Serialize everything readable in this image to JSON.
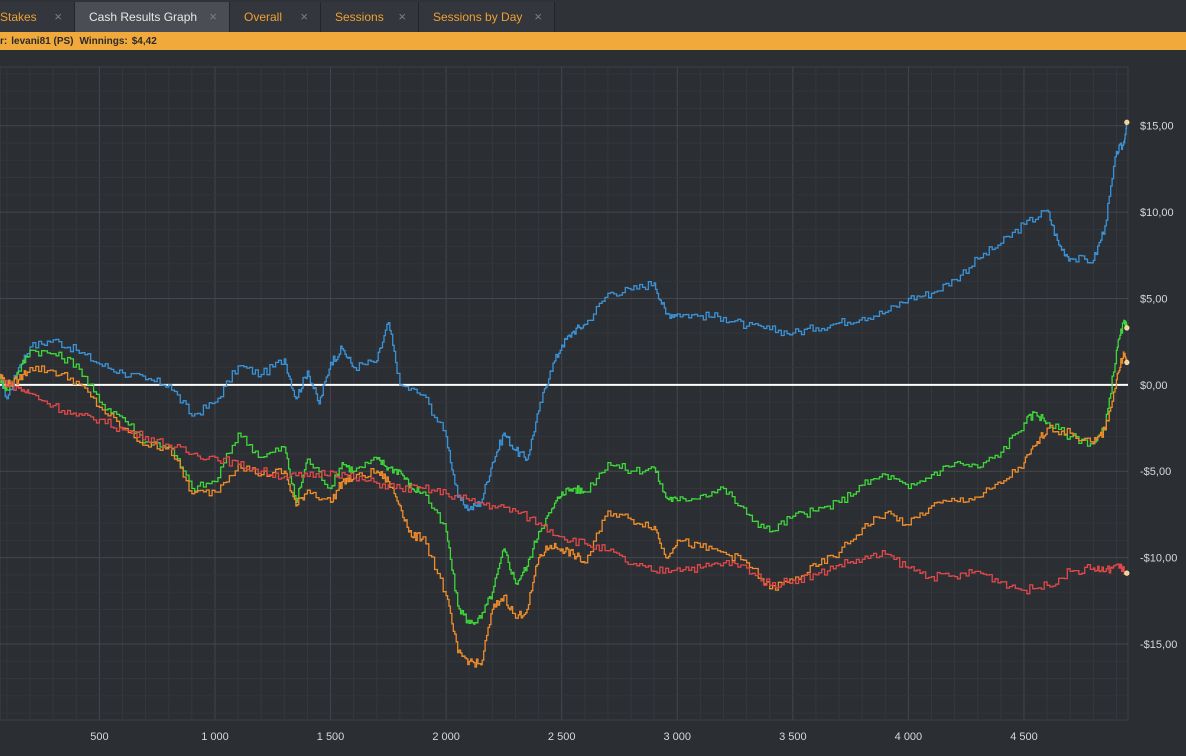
{
  "tabs": [
    {
      "label": "Stakes",
      "active": false
    },
    {
      "label": "Cash Results Graph",
      "active": true
    },
    {
      "label": "Overall",
      "active": false
    },
    {
      "label": "Sessions",
      "active": false
    },
    {
      "label": "Sessions by Day",
      "active": false
    }
  ],
  "tab_close_glyph": "×",
  "infobar": {
    "player_label": "r:",
    "player_name": "levani81 (PS)",
    "winnings_label": "Winnings:",
    "winnings_value": "$4,42"
  },
  "colors": {
    "background": "#2b2e33",
    "grid": "#3d4045",
    "zero_line": "#ffffff",
    "accent": "#f2a93b",
    "blue": "#3a93d8",
    "green": "#3ed83a",
    "orange": "#f08d2a",
    "red": "#e0484a"
  },
  "chart_data": {
    "type": "line",
    "x_tick_labels": [
      "500",
      "1 000",
      "1 500",
      "2 000",
      "2 500",
      "3 000",
      "3 500",
      "4 000",
      "4 500"
    ],
    "x_ticks": [
      500,
      1000,
      1500,
      2000,
      2500,
      3000,
      3500,
      4000,
      4500
    ],
    "y_tick_labels": [
      "$15,00",
      "$10,00",
      "$5,00",
      "$0,00",
      "-$5,00",
      "-$10,00",
      "-$15,00"
    ],
    "y_ticks": [
      15,
      10,
      5,
      0,
      -5,
      -10,
      -15
    ],
    "xlim": [
      70,
      4950
    ],
    "ylim": [
      -19.4,
      18.4
    ],
    "series": [
      {
        "key": "blue",
        "color": "#3a93d8",
        "end_marker": true,
        "points": [
          [
            70,
            0.5
          ],
          [
            100,
            -0.8
          ],
          [
            150,
            1
          ],
          [
            200,
            2.2
          ],
          [
            300,
            2.6
          ],
          [
            400,
            2
          ],
          [
            500,
            1.2
          ],
          [
            600,
            0.7
          ],
          [
            700,
            0.3
          ],
          [
            800,
            0
          ],
          [
            900,
            -1.8
          ],
          [
            1000,
            -1
          ],
          [
            1100,
            1.1
          ],
          [
            1200,
            0.6
          ],
          [
            1300,
            1.5
          ],
          [
            1350,
            -0.8
          ],
          [
            1400,
            0.8
          ],
          [
            1450,
            -1.1
          ],
          [
            1500,
            1.3
          ],
          [
            1550,
            2.1
          ],
          [
            1600,
            1
          ],
          [
            1700,
            1.4
          ],
          [
            1750,
            3.6
          ],
          [
            1800,
            0
          ],
          [
            1900,
            -0.6
          ],
          [
            2000,
            -3
          ],
          [
            2050,
            -6.5
          ],
          [
            2100,
            -7.2
          ],
          [
            2150,
            -6.8
          ],
          [
            2200,
            -4.5
          ],
          [
            2250,
            -2.8
          ],
          [
            2300,
            -3.8
          ],
          [
            2350,
            -4.3
          ],
          [
            2400,
            -1.5
          ],
          [
            2450,
            0.8
          ],
          [
            2500,
            2.3
          ],
          [
            2550,
            3.1
          ],
          [
            2600,
            3.5
          ],
          [
            2700,
            5.3
          ],
          [
            2800,
            5.5
          ],
          [
            2900,
            5.9
          ],
          [
            2950,
            4.1
          ],
          [
            3000,
            4.1
          ],
          [
            3100,
            4
          ],
          [
            3200,
            3.9
          ],
          [
            3300,
            3.4
          ],
          [
            3400,
            3.2
          ],
          [
            3500,
            3
          ],
          [
            3600,
            3.3
          ],
          [
            3700,
            3.6
          ],
          [
            3800,
            3.9
          ],
          [
            3900,
            4.2
          ],
          [
            4000,
            5
          ],
          [
            4100,
            5.3
          ],
          [
            4200,
            6.1
          ],
          [
            4300,
            7.3
          ],
          [
            4400,
            8.2
          ],
          [
            4500,
            9.3
          ],
          [
            4600,
            10.1
          ],
          [
            4650,
            8.1
          ],
          [
            4700,
            7.3
          ],
          [
            4800,
            7.2
          ],
          [
            4850,
            9.2
          ],
          [
            4900,
            13.5
          ],
          [
            4930,
            13.9
          ],
          [
            4945,
            15.2
          ]
        ]
      },
      {
        "key": "green",
        "color": "#3ed83a",
        "end_marker": true,
        "points": [
          [
            70,
            0.4
          ],
          [
            100,
            -0.3
          ],
          [
            150,
            0.8
          ],
          [
            200,
            2
          ],
          [
            300,
            1.8
          ],
          [
            400,
            1.2
          ],
          [
            500,
            -1
          ],
          [
            600,
            -1.9
          ],
          [
            700,
            -3.3
          ],
          [
            800,
            -3.5
          ],
          [
            900,
            -6
          ],
          [
            1000,
            -5.6
          ],
          [
            1100,
            -2.8
          ],
          [
            1200,
            -4.2
          ],
          [
            1300,
            -3.6
          ],
          [
            1350,
            -6.8
          ],
          [
            1400,
            -4.3
          ],
          [
            1500,
            -6
          ],
          [
            1550,
            -4.5
          ],
          [
            1600,
            -5
          ],
          [
            1700,
            -4.3
          ],
          [
            1750,
            -4.8
          ],
          [
            1800,
            -5
          ],
          [
            1850,
            -6
          ],
          [
            1900,
            -6.2
          ],
          [
            2000,
            -8.5
          ],
          [
            2050,
            -12.8
          ],
          [
            2100,
            -13.8
          ],
          [
            2150,
            -13.5
          ],
          [
            2200,
            -12
          ],
          [
            2250,
            -9.5
          ],
          [
            2300,
            -11.5
          ],
          [
            2350,
            -10.5
          ],
          [
            2400,
            -8.5
          ],
          [
            2450,
            -7.4
          ],
          [
            2500,
            -6.2
          ],
          [
            2550,
            -6
          ],
          [
            2600,
            -6.2
          ],
          [
            2700,
            -4.5
          ],
          [
            2800,
            -5
          ],
          [
            2900,
            -4.8
          ],
          [
            2950,
            -6.5
          ],
          [
            3000,
            -6.7
          ],
          [
            3100,
            -6.4
          ],
          [
            3200,
            -6
          ],
          [
            3300,
            -7.5
          ],
          [
            3400,
            -8.5
          ],
          [
            3500,
            -7.6
          ],
          [
            3600,
            -7.3
          ],
          [
            3700,
            -6.8
          ],
          [
            3800,
            -5.8
          ],
          [
            3900,
            -5.2
          ],
          [
            4000,
            -6
          ],
          [
            4100,
            -5.2
          ],
          [
            4200,
            -4.5
          ],
          [
            4300,
            -4.8
          ],
          [
            4400,
            -3.9
          ],
          [
            4500,
            -2.2
          ],
          [
            4550,
            -1.6
          ],
          [
            4600,
            -2.2
          ],
          [
            4700,
            -3
          ],
          [
            4800,
            -3.4
          ],
          [
            4850,
            -2.5
          ],
          [
            4900,
            2
          ],
          [
            4930,
            3.6
          ],
          [
            4945,
            3.3
          ]
        ]
      },
      {
        "key": "orange",
        "color": "#f08d2a",
        "end_marker": true,
        "points": [
          [
            70,
            0.6
          ],
          [
            100,
            0
          ],
          [
            150,
            0.3
          ],
          [
            200,
            1
          ],
          [
            300,
            0.8
          ],
          [
            400,
            0.2
          ],
          [
            500,
            -1.3
          ],
          [
            600,
            -2.5
          ],
          [
            700,
            -3.5
          ],
          [
            800,
            -3.6
          ],
          [
            900,
            -6.3
          ],
          [
            1000,
            -6.2
          ],
          [
            1100,
            -4.6
          ],
          [
            1200,
            -5.2
          ],
          [
            1300,
            -5
          ],
          [
            1350,
            -7
          ],
          [
            1400,
            -6.1
          ],
          [
            1500,
            -6.8
          ],
          [
            1550,
            -5.6
          ],
          [
            1600,
            -5.4
          ],
          [
            1700,
            -5
          ],
          [
            1750,
            -5.6
          ],
          [
            1800,
            -7
          ],
          [
            1850,
            -8.8
          ],
          [
            1900,
            -8.8
          ],
          [
            2000,
            -12.2
          ],
          [
            2050,
            -15.5
          ],
          [
            2100,
            -16
          ],
          [
            2150,
            -16.2
          ],
          [
            2200,
            -13
          ],
          [
            2250,
            -12.2
          ],
          [
            2300,
            -13.5
          ],
          [
            2350,
            -13
          ],
          [
            2400,
            -10
          ],
          [
            2450,
            -9.3
          ],
          [
            2500,
            -9.5
          ],
          [
            2550,
            -9.8
          ],
          [
            2600,
            -10.3
          ],
          [
            2700,
            -7.3
          ],
          [
            2800,
            -7.8
          ],
          [
            2900,
            -8.2
          ],
          [
            2950,
            -10
          ],
          [
            3000,
            -9
          ],
          [
            3100,
            -9.4
          ],
          [
            3200,
            -9.7
          ],
          [
            3300,
            -10.3
          ],
          [
            3400,
            -11.8
          ],
          [
            3500,
            -11.3
          ],
          [
            3600,
            -10.5
          ],
          [
            3700,
            -9.7
          ],
          [
            3800,
            -8.3
          ],
          [
            3900,
            -7.4
          ],
          [
            4000,
            -8.1
          ],
          [
            4100,
            -7
          ],
          [
            4200,
            -6.7
          ],
          [
            4300,
            -6.5
          ],
          [
            4400,
            -5.7
          ],
          [
            4500,
            -4.5
          ],
          [
            4550,
            -3.5
          ],
          [
            4600,
            -2.5
          ],
          [
            4700,
            -2.8
          ],
          [
            4800,
            -3.4
          ],
          [
            4850,
            -2.6
          ],
          [
            4900,
            0.3
          ],
          [
            4930,
            1.9
          ],
          [
            4945,
            1.3
          ]
        ]
      },
      {
        "key": "red",
        "color": "#e0484a",
        "end_marker": true,
        "points": [
          [
            70,
            0.3
          ],
          [
            150,
            -0.2
          ],
          [
            200,
            -0.5
          ],
          [
            300,
            -1.2
          ],
          [
            400,
            -1.8
          ],
          [
            500,
            -2
          ],
          [
            600,
            -2.6
          ],
          [
            700,
            -3
          ],
          [
            800,
            -3.5
          ],
          [
            900,
            -4
          ],
          [
            1000,
            -4.2
          ],
          [
            1100,
            -4.6
          ],
          [
            1200,
            -5
          ],
          [
            1300,
            -5.3
          ],
          [
            1400,
            -5.3
          ],
          [
            1500,
            -5
          ],
          [
            1600,
            -5.4
          ],
          [
            1700,
            -5.7
          ],
          [
            1800,
            -6
          ],
          [
            1900,
            -6
          ],
          [
            2000,
            -6.3
          ],
          [
            2100,
            -6.7
          ],
          [
            2200,
            -7
          ],
          [
            2300,
            -7.3
          ],
          [
            2400,
            -8
          ],
          [
            2500,
            -8.8
          ],
          [
            2600,
            -9.2
          ],
          [
            2700,
            -9.6
          ],
          [
            2800,
            -10.4
          ],
          [
            2900,
            -10.8
          ],
          [
            3000,
            -10.6
          ],
          [
            3100,
            -10.6
          ],
          [
            3200,
            -10.3
          ],
          [
            3300,
            -10.6
          ],
          [
            3400,
            -11.6
          ],
          [
            3500,
            -11.3
          ],
          [
            3600,
            -11
          ],
          [
            3700,
            -10.4
          ],
          [
            3800,
            -10.1
          ],
          [
            3900,
            -9.8
          ],
          [
            4000,
            -10.6
          ],
          [
            4100,
            -11.1
          ],
          [
            4200,
            -11.1
          ],
          [
            4300,
            -10.8
          ],
          [
            4400,
            -11.4
          ],
          [
            4500,
            -11.9
          ],
          [
            4600,
            -11.6
          ],
          [
            4700,
            -10.8
          ],
          [
            4800,
            -10.6
          ],
          [
            4850,
            -10.8
          ],
          [
            4900,
            -10.4
          ],
          [
            4945,
            -10.9
          ]
        ]
      }
    ]
  }
}
